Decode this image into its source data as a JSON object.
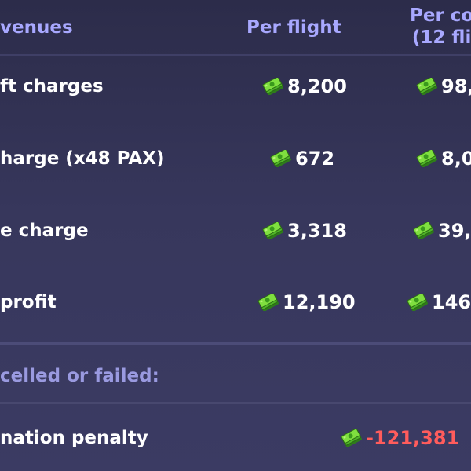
{
  "header": {
    "revenues": "venues",
    "per_flight": "Per flight",
    "per_contract_line1": "Per co",
    "per_contract_line2": "(12 fli"
  },
  "rows": [
    {
      "label": "ft charges",
      "per_flight": "8,200",
      "per_contract": "98,"
    },
    {
      "label": "harge (x48 PAX)",
      "per_flight": "672",
      "per_contract": "8,0"
    },
    {
      "label": "e charge",
      "per_flight": "3,318",
      "per_contract": "39,"
    },
    {
      "label": "profit",
      "per_flight": "12,190",
      "per_contract": "146,"
    }
  ],
  "cancel_section": {
    "title": "celled or failed:",
    "penalty_label": "nation penalty",
    "penalty_value": "-121,381"
  },
  "colors": {
    "header_text": "#a8a8ff",
    "penalty": "#ff5c5c",
    "cash_green": "#6fd43a"
  },
  "icons": {
    "cash": "cash-stack-icon"
  }
}
